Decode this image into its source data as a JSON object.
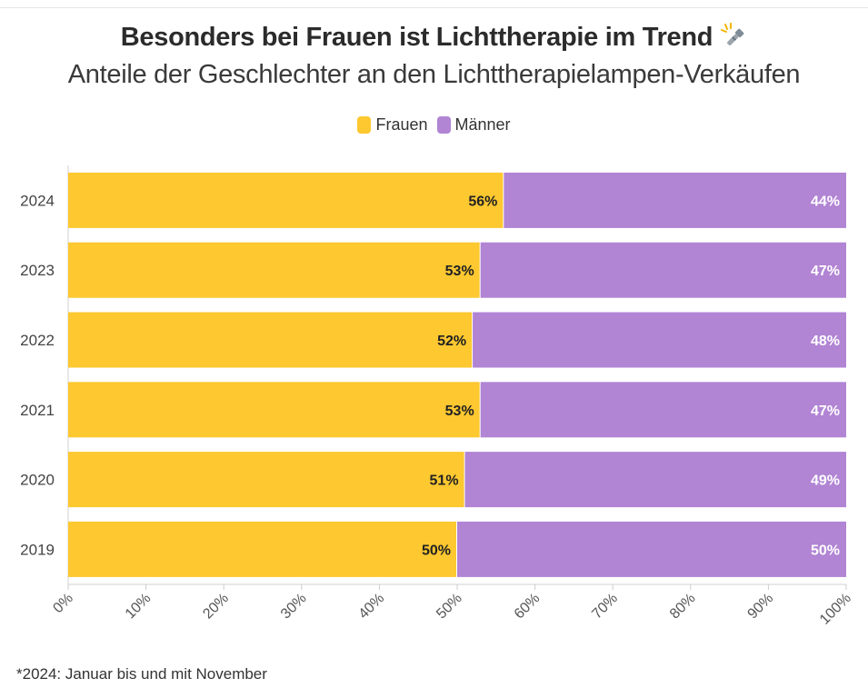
{
  "header": {
    "title": "Besonders bei Frauen ist Lichttherapie im Trend",
    "title_emoji_icon": "flashlight-icon",
    "subtitle": "Anteile der Geschlechter an den Lichttherapielampen-Verkäufen"
  },
  "footnote": "*2024: Januar bis und mit November",
  "colors": {
    "frauen": "#fdc830",
    "maenner": "#b184d4"
  },
  "chart_data": {
    "type": "bar",
    "orientation": "horizontal",
    "stacked": true,
    "categories": [
      "2024",
      "2023",
      "2022",
      "2021",
      "2020",
      "2019"
    ],
    "series": [
      {
        "name": "Frauen",
        "values": [
          56,
          53,
          52,
          53,
          51,
          50
        ],
        "labels": [
          "56%",
          "53%",
          "52%",
          "53%",
          "51%",
          "50%"
        ]
      },
      {
        "name": "Männer",
        "values": [
          44,
          47,
          48,
          47,
          49,
          50
        ],
        "labels": [
          "44%",
          "47%",
          "48%",
          "47%",
          "49%",
          "50%"
        ]
      }
    ],
    "xlim": [
      0,
      100
    ],
    "xticks": [
      "0%",
      "10%",
      "20%",
      "30%",
      "40%",
      "50%",
      "60%",
      "70%",
      "80%",
      "90%",
      "100%"
    ],
    "legend_position": "top-center",
    "grid": false
  }
}
